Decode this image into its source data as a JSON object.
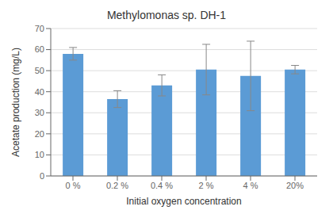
{
  "chart_data": {
    "type": "bar",
    "title": "Methylomonas sp. DH-1",
    "xlabel": "Initial oxygen concentration",
    "ylabel": "Acetate production (mg/L)",
    "categories": [
      "0 %",
      "0.2 %",
      "0.4 %",
      "2 %",
      "4 %",
      "20%"
    ],
    "values": [
      58.0,
      36.5,
      43.0,
      50.5,
      47.5,
      50.5
    ],
    "errors": [
      3.0,
      4.0,
      5.0,
      12.0,
      16.5,
      2.0
    ],
    "color": "#5b9bd5",
    "ylim": [
      0,
      70
    ],
    "yticks": [
      0,
      10,
      20,
      30,
      40,
      50,
      60,
      70
    ],
    "grid": true
  }
}
